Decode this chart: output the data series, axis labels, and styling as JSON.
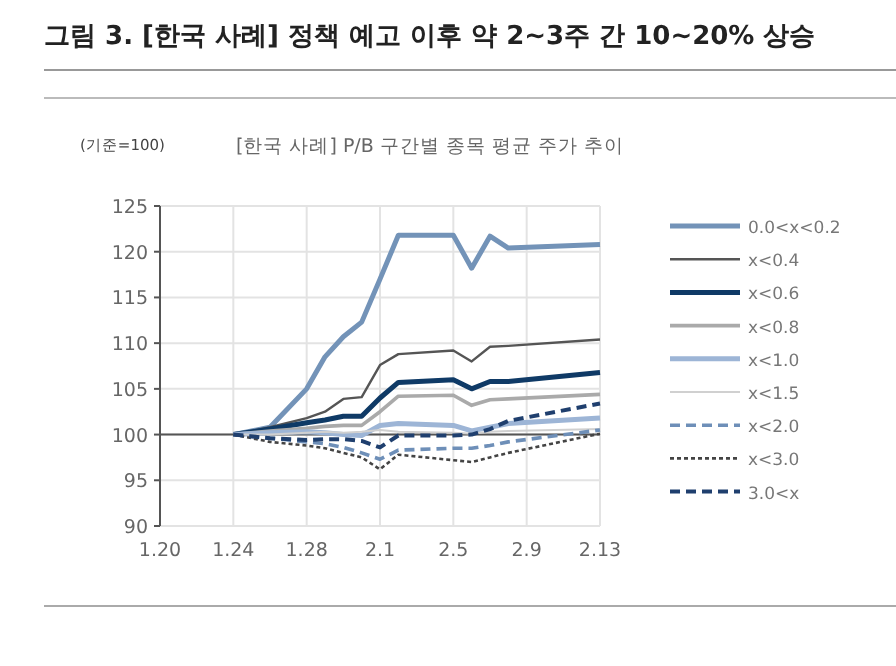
{
  "chart_data": {
    "type": "line",
    "title": "그림 3. [한국 사례] 정책 예고 이후 약 2~3주 간 10~20% 상승",
    "subtitle": "[한국 사례] P/B 구간별 종목 평균 주가 추이",
    "ylabel": "(기준=100)",
    "x": [
      "--01-24",
      "--01-26",
      "--01-28",
      "--01-29",
      "--01-30",
      "--01-31",
      "--02-01",
      "--02-02",
      "--02-05",
      "--02-06",
      "--02-07",
      "--02-08",
      "--02-13"
    ],
    "xlim": [
      "--01-20",
      "--02-13"
    ],
    "xticks": [
      {
        "value": "--01-20",
        "label": "1.20"
      },
      {
        "value": "--01-24",
        "label": "1.24"
      },
      {
        "value": "--01-28",
        "label": "1.28"
      },
      {
        "value": "--02-01",
        "label": "2.1"
      },
      {
        "value": "--02-05",
        "label": "2.5"
      },
      {
        "value": "--02-09",
        "label": "2.9"
      },
      {
        "value": "--02-13",
        "label": "2.13"
      }
    ],
    "ylim": [
      90,
      125
    ],
    "yticks": [
      90,
      95,
      100,
      105,
      110,
      115,
      120,
      125
    ],
    "grid": true,
    "legend": "right",
    "ref_lines": [
      {
        "axis": "y",
        "value": 100,
        "color": "#555555"
      }
    ],
    "series": [
      {
        "name": "0.0<x<0.2",
        "color": "#7393b8",
        "line_style": "solid",
        "values": [
          100,
          100.8,
          105,
          108.5,
          110.7,
          112.3,
          117,
          121.8,
          121.8,
          118.2,
          121.7,
          120.4,
          120.8
        ]
      },
      {
        "name": "x<0.4",
        "color": "#555555",
        "line_style": "solid",
        "values": [
          100,
          100.8,
          101.8,
          102.5,
          103.9,
          104.1,
          107.6,
          108.8,
          109.2,
          108,
          109.6,
          109.7,
          110.4
        ]
      },
      {
        "name": "x<0.6",
        "color": "#0f3a66",
        "line_style": "solid",
        "values": [
          100,
          100.6,
          101.3,
          101.6,
          102,
          102,
          104,
          105.7,
          106,
          105,
          105.8,
          105.8,
          106.8
        ]
      },
      {
        "name": "x<0.8",
        "color": "#aaaaaa",
        "line_style": "solid",
        "values": [
          100,
          100.4,
          100.7,
          100.9,
          101,
          101,
          102.5,
          104.2,
          104.3,
          103.2,
          103.8,
          103.9,
          104.4
        ]
      },
      {
        "name": "x<1.0",
        "color": "#9db5d6",
        "line_style": "solid",
        "values": [
          100,
          100.2,
          100.3,
          100.2,
          100,
          99.9,
          101,
          101.2,
          101,
          100.4,
          100.8,
          101.2,
          101.8
        ]
      },
      {
        "name": "x<1.5",
        "color": "#d0d0d0",
        "line_style": "solid",
        "values": [
          100,
          100,
          100.2,
          100.3,
          100.2,
          100.3,
          100.5,
          100.3,
          100.2,
          100.1,
          100.3,
          100.4,
          100.6
        ]
      },
      {
        "name": "x<2.0",
        "color": "#6e8fb8",
        "line_style": "dashed",
        "values": [
          100,
          99.6,
          99.2,
          99,
          98.6,
          98,
          97.3,
          98.3,
          98.5,
          98.5,
          98.8,
          99.2,
          100.5
        ]
      },
      {
        "name": "x<3.0",
        "color": "#444444",
        "line_style": "dotted",
        "values": [
          100,
          99.2,
          98.8,
          98.5,
          98,
          97.5,
          96.2,
          97.8,
          97.2,
          97,
          97.5,
          98,
          100.1
        ]
      },
      {
        "name": "3.0<x",
        "color": "#1f3f6e",
        "line_style": "dashed",
        "values": [
          100,
          99.6,
          99.4,
          99.5,
          99.5,
          99.3,
          98.6,
          99.9,
          99.9,
          100,
          100.6,
          101.5,
          103.4
        ]
      }
    ]
  }
}
